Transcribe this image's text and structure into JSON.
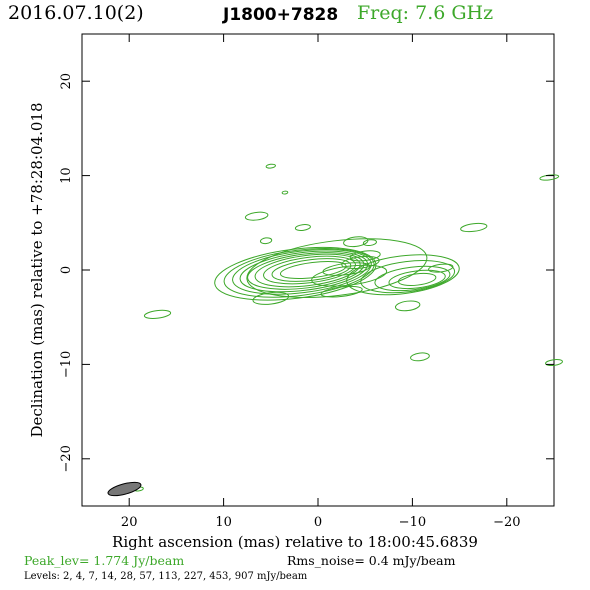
{
  "header": {
    "date": "2016.07.10(2)",
    "source": "J1800+7828",
    "freq": "Freq: 7.6 GHz"
  },
  "footer": {
    "peak": "Peak_lev=  1.774 Jy/beam",
    "rms": "Rms_noise=  0.4 mJy/beam",
    "levels": "Levels:   2,   4,   7,   14,   28,   57,  113,  227,  453,  907 mJy/beam"
  },
  "colors": {
    "contour": "#3da82a",
    "beam_fill": "#777777",
    "header_freq": "#3da82a"
  },
  "chart_data": {
    "type": "contour",
    "xlabel": "Right ascension (mas) relative to 18:00:45.6839",
    "ylabel": "Declination (mas) relative to +78:28:04.018",
    "xlim": [
      25,
      -25
    ],
    "ylim": [
      -25,
      25
    ],
    "x_ticks": [
      20,
      10,
      0,
      -10,
      -20
    ],
    "x_tick_labels": [
      "20",
      "10",
      "0",
      "−10",
      "−20"
    ],
    "y_ticks": [
      20,
      10,
      0,
      -10,
      -20
    ],
    "y_tick_labels": [
      "20",
      "10",
      "0",
      "−10",
      "−20"
    ],
    "levels_mJy_per_beam": [
      2,
      4,
      7,
      14,
      28,
      57,
      113,
      227,
      453,
      907
    ],
    "peak_Jy_per_beam": 1.774,
    "rms_noise_mJy_per_beam": 0.4,
    "beam": {
      "x": 20.5,
      "y": -23.2,
      "major_mas": 3.6,
      "minor_mas": 1.1,
      "angle_deg": 15
    },
    "core_contours": [
      {
        "x": 0.5,
        "y": 0.0,
        "rx": 3.5,
        "ry": 0.8
      },
      {
        "x": 0.7,
        "y": 0.0,
        "rx": 4.2,
        "ry": 1.1
      },
      {
        "x": 0.9,
        "y": 0.0,
        "rx": 4.9,
        "ry": 1.35
      },
      {
        "x": 1.1,
        "y": -0.05,
        "rx": 5.6,
        "ry": 1.6
      },
      {
        "x": 1.3,
        "y": -0.1,
        "rx": 6.2,
        "ry": 1.8
      },
      {
        "x": 1.5,
        "y": -0.15,
        "rx": 6.8,
        "ry": 2.0
      },
      {
        "x": 1.7,
        "y": -0.2,
        "rx": 7.4,
        "ry": 2.2
      },
      {
        "x": 2.0,
        "y": -0.3,
        "rx": 8.0,
        "ry": 2.4
      },
      {
        "x": 2.4,
        "y": -0.4,
        "rx": 8.6,
        "ry": 2.6
      }
    ],
    "jet_components": [
      {
        "x": -10.5,
        "y": -1.0,
        "rx": 2.0,
        "ry": 0.6
      },
      {
        "x": -10.5,
        "y": -1.0,
        "rx": 3.0,
        "ry": 0.9
      },
      {
        "x": -10.0,
        "y": -0.9,
        "rx": 4.0,
        "ry": 1.2
      },
      {
        "x": -9.5,
        "y": -0.7,
        "rx": 5.0,
        "ry": 1.6
      },
      {
        "x": -9.0,
        "y": -0.5,
        "rx": 6.0,
        "ry": 2.0
      },
      {
        "x": -3.0,
        "y": 0.1,
        "rx": 2.5,
        "ry": 0.6
      },
      {
        "x": -3.3,
        "y": -0.6,
        "rx": 4.0,
        "ry": 1.0
      },
      {
        "x": -4.5,
        "y": 0.8,
        "rx": 2.0,
        "ry": 0.6
      },
      {
        "x": -5.0,
        "y": 1.5,
        "rx": 1.6,
        "ry": 0.5
      },
      {
        "x": -2.5,
        "y": -2.3,
        "rx": 2.2,
        "ry": 0.5
      }
    ],
    "islands": [
      {
        "x": 5.0,
        "y": 11.0,
        "rx": 0.5,
        "ry": 0.2
      },
      {
        "x": 3.5,
        "y": 8.2,
        "rx": 0.3,
        "ry": 0.15
      },
      {
        "x": 6.5,
        "y": 5.7,
        "rx": 1.2,
        "ry": 0.4
      },
      {
        "x": -4.0,
        "y": 3.0,
        "rx": 1.3,
        "ry": 0.5
      },
      {
        "x": -5.5,
        "y": 2.9,
        "rx": 0.7,
        "ry": 0.3
      },
      {
        "x": 1.6,
        "y": 4.5,
        "rx": 0.8,
        "ry": 0.3
      },
      {
        "x": 5.5,
        "y": 3.1,
        "rx": 0.6,
        "ry": 0.3
      },
      {
        "x": -13.0,
        "y": 0.2,
        "rx": 1.3,
        "ry": 0.4
      },
      {
        "x": -16.5,
        "y": 4.5,
        "rx": 1.4,
        "ry": 0.4
      },
      {
        "x": -24.5,
        "y": 9.8,
        "rx": 1.0,
        "ry": 0.25
      },
      {
        "x": 17.0,
        "y": -4.7,
        "rx": 1.4,
        "ry": 0.4
      },
      {
        "x": 19.0,
        "y": -23.2,
        "rx": 0.5,
        "ry": 0.2
      },
      {
        "x": 5.0,
        "y": -3.0,
        "rx": 1.9,
        "ry": 0.6
      },
      {
        "x": -9.5,
        "y": -3.8,
        "rx": 1.3,
        "ry": 0.5
      },
      {
        "x": -10.8,
        "y": -9.2,
        "rx": 1.0,
        "ry": 0.4
      },
      {
        "x": -25.0,
        "y": -9.8,
        "rx": 0.9,
        "ry": 0.3
      },
      {
        "x": -2.0,
        "y": 0.2,
        "rx": 9.6,
        "ry": 2.9
      }
    ]
  }
}
